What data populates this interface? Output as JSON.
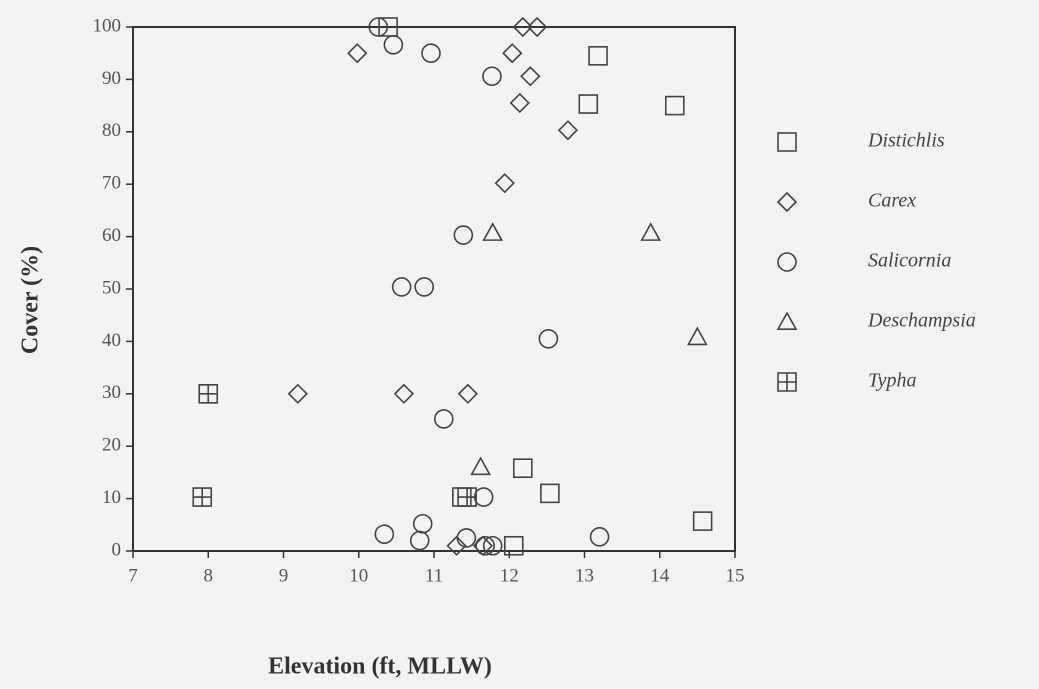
{
  "chart_data": {
    "type": "scatter",
    "x_label": "Elevation (ft, MLLW)",
    "y_label": "Cover  (%)",
    "xlim": [
      7,
      15
    ],
    "ylim": [
      0,
      100
    ],
    "xticks": [
      7,
      8,
      9,
      10,
      11,
      12,
      13,
      14,
      15
    ],
    "yticks": [
      0,
      10,
      20,
      30,
      40,
      50,
      60,
      70,
      80,
      90,
      100
    ],
    "series": [
      {
        "name": "Distichlis",
        "marker": "square",
        "color": "#444",
        "x": [
          10.39,
          13.18,
          13.05,
          14.2,
          12.18,
          12.54,
          11.37,
          12.06,
          14.57
        ],
        "y": [
          100,
          94.5,
          85.3,
          85,
          15.8,
          11,
          10.3,
          1,
          5.7
        ]
      },
      {
        "name": "Carex",
        "marker": "diamond",
        "color": "#444",
        "x": [
          9.98,
          12.18,
          12.37,
          12.04,
          12.28,
          12.14,
          12.78,
          11.94,
          9.19,
          10.6,
          11.45,
          11.3,
          11.65
        ],
        "y": [
          95,
          100,
          100,
          95,
          90.6,
          85.5,
          80.3,
          70.2,
          30,
          30,
          30,
          1,
          1
        ]
      },
      {
        "name": "Salicornia",
        "marker": "circle",
        "color": "#444",
        "x": [
          10.26,
          10.46,
          10.96,
          11.77,
          11.39,
          10.57,
          10.87,
          12.52,
          11.13,
          10.34,
          10.81,
          10.85,
          11.43,
          11.66,
          11.78,
          11.68,
          13.2
        ],
        "y": [
          100,
          96.6,
          95,
          90.6,
          60.3,
          50.4,
          50.4,
          40.5,
          25.2,
          3.2,
          2,
          5.2,
          2.5,
          10.3,
          1,
          1,
          2.7
        ]
      },
      {
        "name": "Deschampsia",
        "marker": "triangle",
        "color": "#444",
        "x": [
          11.78,
          13.88,
          14.5,
          11.62
        ],
        "y": [
          60.7,
          60.7,
          40.8,
          16
        ]
      },
      {
        "name": "Typha",
        "marker": "squareplus",
        "color": "#444",
        "x": [
          8.0,
          7.92,
          11.44
        ],
        "y": [
          30,
          10.3,
          10.3
        ]
      }
    ]
  }
}
